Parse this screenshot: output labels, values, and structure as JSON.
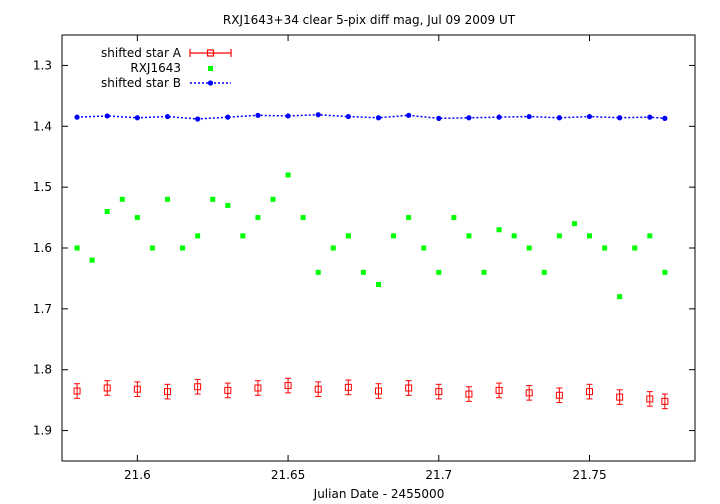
{
  "chart_data": {
    "type": "scatter",
    "title": "RXJ1643+34 clear 5-pix diff mag, Jul 09 2009 UT",
    "xlabel": "Julian Date - 2455000",
    "ylabel": "",
    "xlim": [
      21.575,
      21.785
    ],
    "ylim": [
      1.95,
      1.25
    ],
    "y_inverted": true,
    "xticks": [
      21.6,
      21.65,
      21.7,
      21.75
    ],
    "xtick_labels": [
      "21.6",
      "21.65",
      "21.7",
      "21.75"
    ],
    "yticks": [
      1.3,
      1.4,
      1.5,
      1.6,
      1.7,
      1.8,
      1.9
    ],
    "ytick_labels": [
      "1.3",
      "1.4",
      "1.5",
      "1.6",
      "1.7",
      "1.8",
      "1.9"
    ],
    "grid": false,
    "legend_position": "top-left",
    "legend": [
      "shifted star A",
      "RXJ1643",
      "shifted star B"
    ],
    "colors": {
      "star_a": "#ff0000",
      "rxj": "#00ff00",
      "star_b": "#0000ff"
    },
    "series": [
      {
        "name": "shifted star A",
        "style": "points with error bars",
        "x": [
          21.58,
          21.59,
          21.6,
          21.61,
          21.62,
          21.63,
          21.64,
          21.65,
          21.66,
          21.67,
          21.68,
          21.69,
          21.7,
          21.71,
          21.72,
          21.73,
          21.74,
          21.75,
          21.76,
          21.77,
          21.775
        ],
        "y": [
          1.835,
          1.83,
          1.832,
          1.836,
          1.828,
          1.834,
          1.83,
          1.826,
          1.832,
          1.829,
          1.835,
          1.83,
          1.836,
          1.84,
          1.834,
          1.838,
          1.842,
          1.836,
          1.845,
          1.848,
          1.852
        ],
        "yerr": [
          0.012,
          0.012,
          0.012,
          0.012,
          0.012,
          0.012,
          0.012,
          0.012,
          0.012,
          0.012,
          0.012,
          0.012,
          0.012,
          0.012,
          0.012,
          0.012,
          0.012,
          0.012,
          0.012,
          0.012,
          0.012
        ]
      },
      {
        "name": "RXJ1643",
        "style": "points",
        "x": [
          21.58,
          21.585,
          21.59,
          21.595,
          21.6,
          21.605,
          21.61,
          21.615,
          21.62,
          21.625,
          21.63,
          21.635,
          21.64,
          21.645,
          21.65,
          21.655,
          21.66,
          21.665,
          21.67,
          21.675,
          21.68,
          21.685,
          21.69,
          21.695,
          21.7,
          21.705,
          21.71,
          21.715,
          21.72,
          21.725,
          21.73,
          21.735,
          21.74,
          21.745,
          21.75,
          21.755,
          21.76,
          21.765,
          21.77,
          21.775
        ],
        "y": [
          1.6,
          1.62,
          1.54,
          1.52,
          1.55,
          1.6,
          1.52,
          1.6,
          1.58,
          1.52,
          1.53,
          1.58,
          1.55,
          1.52,
          1.48,
          1.55,
          1.64,
          1.6,
          1.58,
          1.64,
          1.66,
          1.58,
          1.55,
          1.6,
          1.64,
          1.55,
          1.58,
          1.64,
          1.57,
          1.58,
          1.6,
          1.64,
          1.58,
          1.56,
          1.58,
          1.6,
          1.68,
          1.6,
          1.58,
          1.64
        ]
      },
      {
        "name": "shifted star B",
        "style": "points with lines",
        "x": [
          21.58,
          21.59,
          21.6,
          21.61,
          21.62,
          21.63,
          21.64,
          21.65,
          21.66,
          21.67,
          21.68,
          21.69,
          21.7,
          21.71,
          21.72,
          21.73,
          21.74,
          21.75,
          21.76,
          21.77,
          21.775
        ],
        "y": [
          1.385,
          1.383,
          1.386,
          1.384,
          1.388,
          1.385,
          1.382,
          1.383,
          1.381,
          1.384,
          1.386,
          1.382,
          1.387,
          1.386,
          1.385,
          1.384,
          1.386,
          1.384,
          1.386,
          1.385,
          1.387
        ]
      }
    ]
  }
}
